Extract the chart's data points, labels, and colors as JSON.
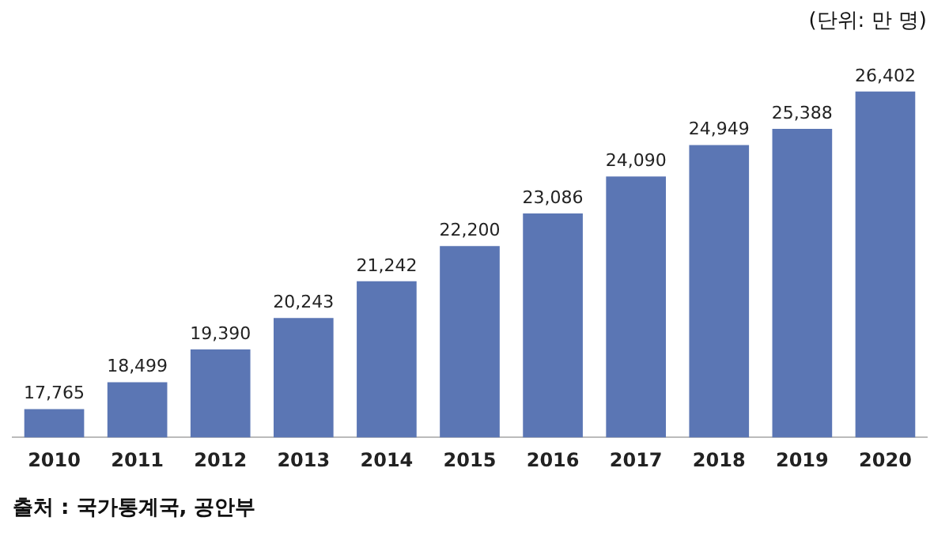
{
  "chart_data": {
    "type": "bar",
    "categories": [
      "2010",
      "2011",
      "2012",
      "2013",
      "2014",
      "2015",
      "2016",
      "2017",
      "2018",
      "2019",
      "2020"
    ],
    "values": [
      17765,
      18499,
      19390,
      20243,
      21242,
      22200,
      23086,
      24090,
      24949,
      25388,
      26402
    ],
    "color": "#5b76b4",
    "value_labels": [
      "17,765",
      "18,499",
      "19,390",
      "20,243",
      "21,242",
      "22,200",
      "23,086",
      "24,090",
      "24,949",
      "25,388",
      "26,402"
    ],
    "tick_labels": "x",
    "grid": false,
    "annotations": [
      "(단위: 만 명)",
      "출처 : 국가통계국, 공안부"
    ]
  }
}
